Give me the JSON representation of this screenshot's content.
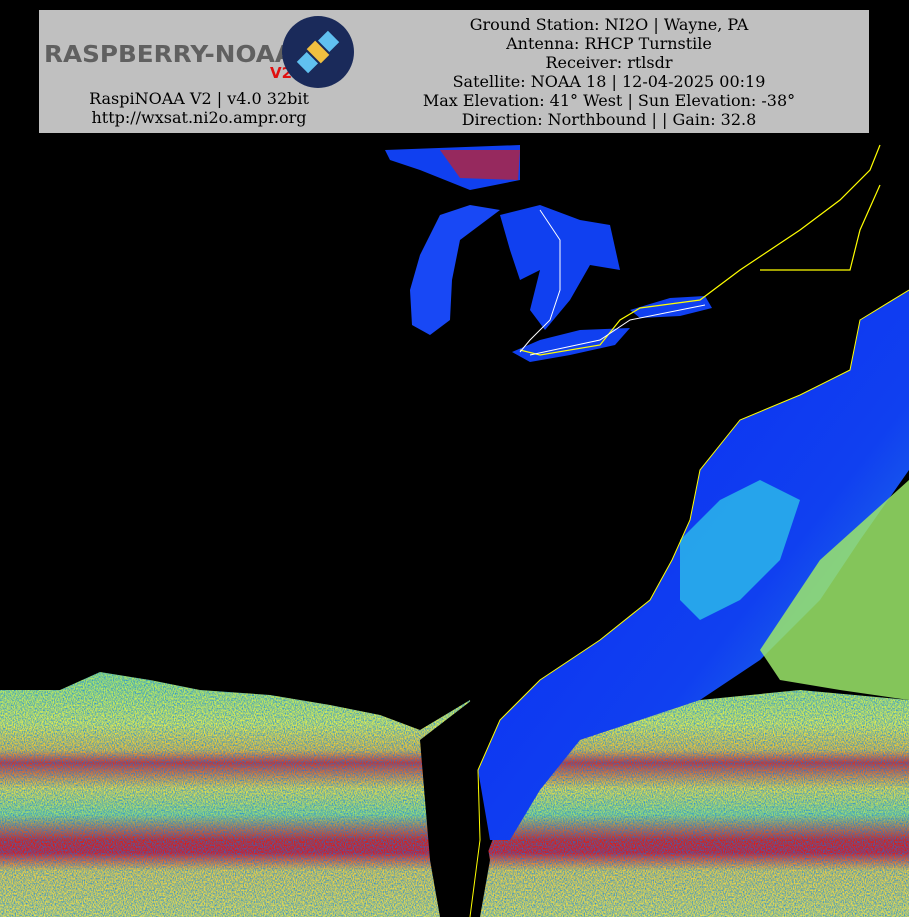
{
  "header": {
    "logo_text": "RASPBERRY-NOAA",
    "logo_version": "V2",
    "left_lines": [
      "RaspiNOAA V2 | v4.0 32bit",
      "http://wxsat.ni2o.ampr.org"
    ],
    "right_lines": [
      "Ground Station: NI2O | Wayne, PA",
      "Antenna: RHCP Turnstile",
      "Receiver: rtlsdr",
      "Satellite: NOAA 18 | 12-04-2025 00:19",
      "Max Elevation: 41° West | Sun Elevation: -38°",
      "Direction: Northbound | | Gain: 32.8"
    ]
  }
}
